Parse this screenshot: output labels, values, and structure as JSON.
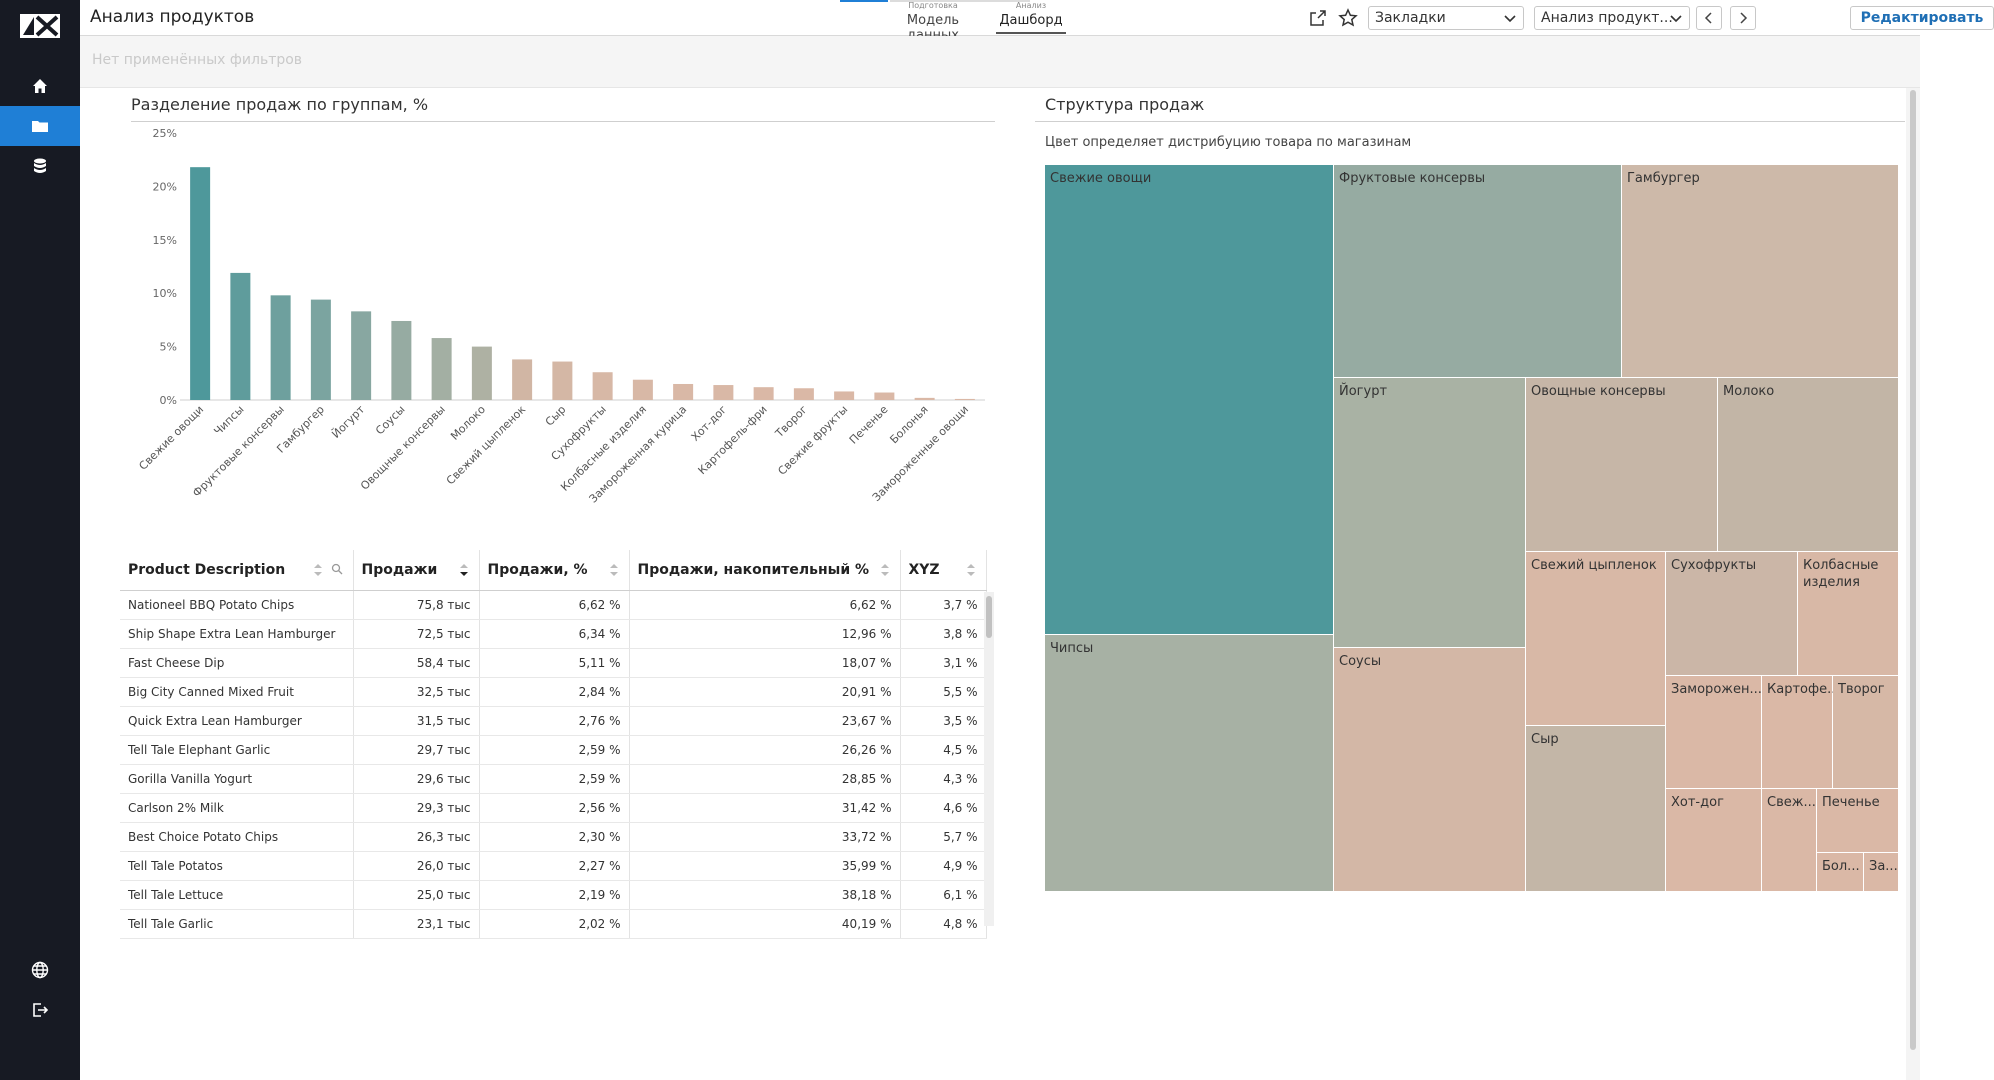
{
  "app": {
    "title": "Анализ продуктов",
    "filters_text": "Нет применённых фильтров"
  },
  "stages": [
    {
      "small": "Подготовка",
      "label": "Модель данных"
    },
    {
      "small": "Анализ",
      "label": "Дашборд"
    }
  ],
  "toolbar": {
    "bookmarks_value": "Закладки",
    "report_value": "Анализ продукт...",
    "edit_label": "Редактировать"
  },
  "colors": {
    "accent": "#1f7fd6",
    "rail": "#171a23",
    "teal": "#4e989b",
    "sand": "#dab8a6"
  },
  "bar_panel": {
    "title": "Разделение продаж по группам, %"
  },
  "chart_data": {
    "type": "bar",
    "ylim": [
      0,
      25
    ],
    "yticks": [
      "0%",
      "5%",
      "10%",
      "15%",
      "20%",
      "25%"
    ],
    "categories": [
      "Свежие овощи",
      "Чипсы",
      "Фруктовые консервы",
      "Гамбургер",
      "Йогурт",
      "Соусы",
      "Овощные консервы",
      "Молоко",
      "Свежий цыпленок",
      "Сыр",
      "Сухофрукты",
      "Колбасные изделия",
      "Замороженная курица",
      "Хот-дог",
      "Картофель-фри",
      "Творог",
      "Свежие фрукты",
      "Печенье",
      "Болонья",
      "Замороженные овощи"
    ],
    "values": [
      21.8,
      11.9,
      9.8,
      9.4,
      8.3,
      7.4,
      5.8,
      5.0,
      3.8,
      3.6,
      2.6,
      1.9,
      1.5,
      1.4,
      1.2,
      1.1,
      0.8,
      0.7,
      0.2,
      0.1
    ],
    "colors": [
      "#4e989b",
      "#5f9c9c",
      "#6ea09e",
      "#7ba4a0",
      "#88a7a1",
      "#96aba2",
      "#a3afa3",
      "#aeb1a3",
      "#d1b6a4",
      "#d4b7a5",
      "#d7b8a6",
      "#d8b8a6",
      "#d9b8a6",
      "#d9b8a6",
      "#dab8a6",
      "#dab8a6",
      "#dab8a6",
      "#dab8a6",
      "#dab8a6",
      "#dab8a6"
    ]
  },
  "table": {
    "columns": [
      "Product Description",
      "Продажи",
      "Продажи, %",
      "Продажи, накопительный %",
      "XYZ"
    ],
    "rows": [
      [
        "Nationeel BBQ Potato Chips",
        "75,8 тыс",
        "6,62 %",
        "6,62 %",
        "3,7 %"
      ],
      [
        "Ship Shape Extra Lean Hamburger",
        "72,5 тыс",
        "6,34 %",
        "12,96 %",
        "3,8 %"
      ],
      [
        "Fast Cheese Dip",
        "58,4 тыс",
        "5,11 %",
        "18,07 %",
        "3,1 %"
      ],
      [
        "Big City Canned Mixed Fruit",
        "32,5 тыс",
        "2,84 %",
        "20,91 %",
        "5,5 %"
      ],
      [
        "Quick Extra Lean Hamburger",
        "31,5 тыс",
        "2,76 %",
        "23,67 %",
        "3,5 %"
      ],
      [
        "Tell Tale Elephant Garlic",
        "29,7 тыс",
        "2,59 %",
        "26,26 %",
        "4,5 %"
      ],
      [
        "Gorilla Vanilla Yogurt",
        "29,6 тыс",
        "2,59 %",
        "28,85 %",
        "4,3 %"
      ],
      [
        "Carlson 2% Milk",
        "29,3 тыс",
        "2,56 %",
        "31,42 %",
        "4,6 %"
      ],
      [
        "Best Choice Potato Chips",
        "26,3 тыс",
        "2,30 %",
        "33,72 %",
        "5,7 %"
      ],
      [
        "Tell Tale Potatos",
        "26,0 тыс",
        "2,27 %",
        "35,99 %",
        "4,9 %"
      ],
      [
        "Tell Tale Lettuce",
        "25,0 тыс",
        "2,19 %",
        "38,18 %",
        "6,1 %"
      ],
      [
        "Tell Tale Garlic",
        "23,1 тыс",
        "2,02 %",
        "40,19 %",
        "4,8 %"
      ]
    ]
  },
  "treemap_panel": {
    "title": "Структура продаж",
    "subtitle": "Цвет определяет дистрибуцию товара по магазинам"
  },
  "treemap": [
    {
      "label": "Свежие овощи",
      "color": "#4e989b"
    },
    {
      "label": "Чипсы",
      "color": "#a7b1a4"
    },
    {
      "label": "Фруктовые консервы",
      "color": "#96aba2"
    },
    {
      "label": "Гамбургер",
      "color": "#cdb9a9"
    },
    {
      "label": "Йогурт",
      "color": "#a9b2a4"
    },
    {
      "label": "Соусы",
      "color": "#d3b7a6"
    },
    {
      "label": "Овощные консервы",
      "color": "#c6b6a7"
    },
    {
      "label": "Молоко",
      "color": "#c2b5a6"
    },
    {
      "label": "Свежий цыпленок",
      "color": "#d8b8a6"
    },
    {
      "label": "Сыр",
      "color": "#c3b6a7"
    },
    {
      "label": "Сухофрукты",
      "color": "#cbb6a7"
    },
    {
      "label": "Колбасные изделия",
      "color": "#d8b8a6"
    },
    {
      "label": "Заморожен...",
      "color": "#dab8a6"
    },
    {
      "label": "Картофе...",
      "color": "#dab8a6"
    },
    {
      "label": "Творог",
      "color": "#d6b8a6"
    },
    {
      "label": "Хот-дог",
      "color": "#dab8a6"
    },
    {
      "label": "Свеж...",
      "color": "#dab8a6"
    },
    {
      "label": "Печенье",
      "color": "#dab8a6"
    },
    {
      "label": "Бол...",
      "color": "#dab8a6"
    },
    {
      "label": "За...",
      "color": "#dab8a6"
    }
  ]
}
